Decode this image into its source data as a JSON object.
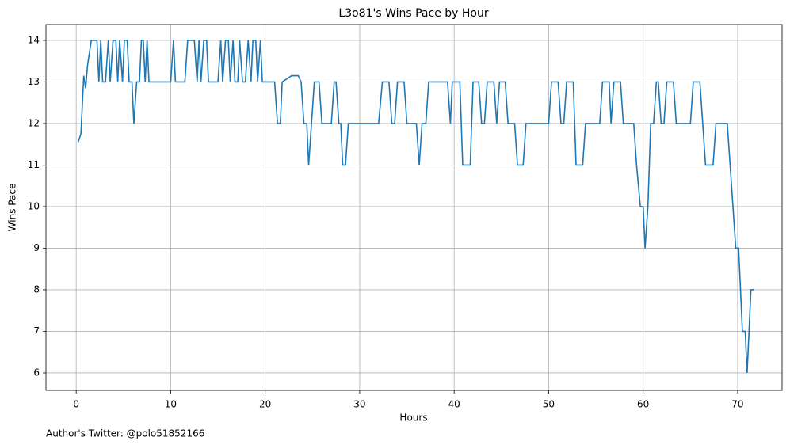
{
  "chart_data": {
    "type": "line",
    "title": "L3o81's Wins Pace by Hour",
    "x_label": "Hours",
    "y_label": "Wins Pace",
    "footnote": "Author's Twitter: @polo51852166",
    "xlim": [
      -3.2,
      74.7
    ],
    "ylim": [
      5.58,
      14.38
    ],
    "xticks": [
      0,
      10,
      20,
      30,
      40,
      50,
      60,
      70
    ],
    "yticks": [
      6,
      7,
      8,
      9,
      10,
      11,
      12,
      13,
      14
    ],
    "grid": true,
    "x": [
      0.2,
      0.5,
      0.8,
      1.0,
      1.2,
      1.6,
      2.2,
      2.4,
      2.6,
      2.8,
      3.1,
      3.4,
      3.6,
      3.9,
      4.2,
      4.4,
      4.6,
      4.9,
      5.1,
      5.4,
      5.6,
      5.9,
      6.1,
      6.4,
      6.7,
      6.9,
      7.1,
      7.3,
      7.5,
      7.7,
      8.0,
      10.0,
      10.3,
      10.5,
      11.0,
      11.5,
      11.8,
      12.5,
      12.8,
      13.0,
      13.2,
      13.5,
      13.8,
      14.0,
      15.0,
      15.3,
      15.5,
      15.8,
      16.1,
      16.3,
      16.6,
      16.8,
      17.1,
      17.3,
      17.6,
      17.9,
      18.2,
      18.5,
      18.7,
      19.0,
      19.2,
      19.5,
      19.7,
      21.0,
      21.3,
      21.6,
      21.8,
      22.8,
      23.5,
      23.8,
      24.1,
      24.4,
      24.6,
      24.9,
      25.2,
      25.7,
      26.0,
      27.0,
      27.3,
      27.5,
      27.8,
      28.0,
      28.2,
      28.5,
      28.8,
      32.0,
      32.4,
      33.1,
      33.4,
      33.7,
      34.0,
      34.7,
      35.0,
      36.0,
      36.3,
      36.6,
      37.0,
      37.3,
      39.3,
      39.6,
      39.8,
      40.6,
      40.9,
      41.7,
      42.0,
      42.6,
      42.9,
      43.2,
      43.5,
      44.2,
      44.5,
      44.8,
      45.4,
      45.7,
      46.4,
      46.7,
      47.3,
      47.6,
      50.0,
      50.3,
      51.0,
      51.3,
      51.6,
      51.9,
      52.6,
      52.9,
      53.6,
      53.9,
      55.4,
      55.7,
      56.4,
      56.6,
      56.9,
      57.6,
      57.9,
      59.0,
      59.3,
      59.7,
      60.0,
      60.2,
      60.5,
      60.8,
      61.1,
      61.4,
      61.6,
      61.9,
      62.2,
      62.5,
      63.2,
      63.5,
      65.0,
      65.3,
      66.0,
      66.3,
      66.6,
      67.4,
      67.7,
      68.9,
      69.2,
      69.5,
      69.8,
      70.1,
      70.3,
      70.5,
      70.8,
      71.0,
      71.2,
      71.4,
      71.7
    ],
    "series": [
      {
        "name": "Wins Pace",
        "color": "#1f77b4",
        "values": [
          11.55,
          11.75,
          13.15,
          12.85,
          13.4,
          14,
          14,
          13,
          14,
          13,
          13,
          14,
          13,
          14,
          14,
          13,
          14,
          13,
          14,
          14,
          13,
          13,
          12,
          13,
          13,
          14,
          14,
          13,
          14,
          13,
          13,
          13,
          14,
          13,
          13,
          13,
          14,
          14,
          13,
          14,
          13,
          14,
          14,
          13,
          13,
          14,
          13,
          14,
          14,
          13,
          14,
          13,
          13,
          14,
          13,
          13,
          14,
          13,
          14,
          14,
          13,
          14,
          13,
          13,
          12,
          12,
          13,
          13.15,
          13.15,
          13,
          12,
          12,
          11,
          12,
          13,
          13,
          12,
          12,
          13,
          13,
          12,
          12,
          11,
          11,
          12,
          12,
          13,
          13,
          12,
          12,
          13,
          13,
          12,
          12,
          11,
          12,
          12,
          13,
          13,
          12,
          13,
          13,
          11,
          11,
          13,
          13,
          12,
          12,
          13,
          13,
          12,
          13,
          13,
          12,
          12,
          11,
          11,
          12,
          12,
          13,
          13,
          12,
          12,
          13,
          13,
          11,
          11,
          12,
          12,
          13,
          13,
          12,
          13,
          13,
          12,
          12,
          11,
          10,
          10,
          9,
          10,
          12,
          12,
          13,
          13,
          12,
          12,
          13,
          13,
          12,
          12,
          13,
          13,
          12,
          11,
          11,
          12,
          12,
          11,
          10,
          9,
          9,
          8,
          7,
          7,
          6,
          7,
          8,
          8
        ]
      }
    ]
  }
}
